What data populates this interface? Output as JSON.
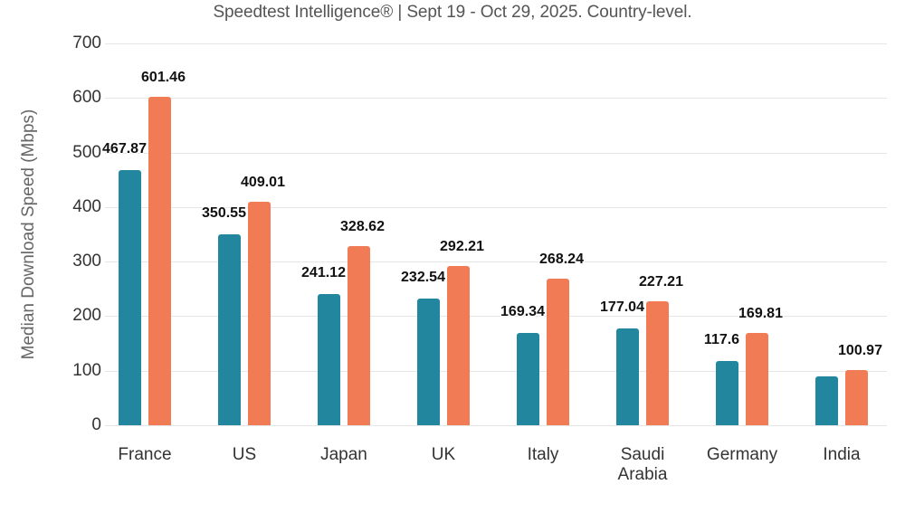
{
  "chart_data": {
    "type": "bar",
    "title": "Speedtest Intelligence® | Sept 19 - Oct 29, 2025. Country-level.",
    "xlabel": "",
    "ylabel": "Median Download Speed (Mbps)",
    "ylim": [
      0,
      700
    ],
    "yticks": [
      0,
      100,
      200,
      300,
      400,
      500,
      600,
      700
    ],
    "grid": true,
    "legend": null,
    "categories": [
      "France",
      "US",
      "Japan",
      "UK",
      "Italy",
      "Saudi Arabia",
      "Germany",
      "India"
    ],
    "category_display": [
      "France",
      "US",
      "Japan",
      "UK",
      "Italy",
      "Saudi\nArabia",
      "Germany",
      "India"
    ],
    "series": [
      {
        "name": "series-1",
        "color": "#23869F",
        "values": [
          467.87,
          350.55,
          241.12,
          232.54,
          169.34,
          177.04,
          117.6,
          90
        ],
        "labels": [
          "467.87",
          "350.55",
          "241.12",
          "232.54",
          "169.34",
          "177.04",
          "117.6",
          ""
        ]
      },
      {
        "name": "series-2",
        "color": "#F07B55",
        "values": [
          601.46,
          409.01,
          328.62,
          292.21,
          268.24,
          227.21,
          169.81,
          100.97
        ],
        "labels": [
          "601.46",
          "409.01",
          "328.62",
          "292.21",
          "268.24",
          "227.21",
          "169.81",
          "100.97"
        ]
      }
    ],
    "notes": "India series-1 value has no data label; ~90 estimated from gridlines."
  }
}
